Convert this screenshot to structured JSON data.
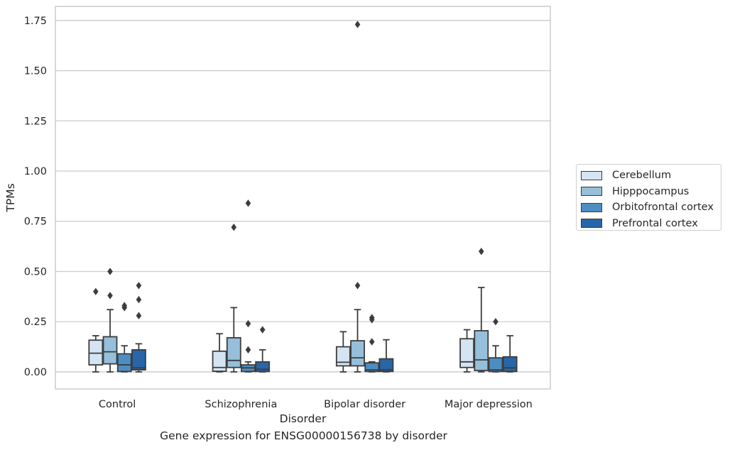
{
  "caption": "Gene expression for ENSG00000156738 by disorder",
  "chart_data": {
    "type": "box",
    "xlabel": "Disorder",
    "ylabel": "TPMs",
    "ylim": [
      -0.085,
      1.82
    ],
    "yticks": [
      0.0,
      0.25,
      0.5,
      0.75,
      1.0,
      1.25,
      1.5,
      1.75
    ],
    "ytick_labels": [
      "0.00",
      "0.25",
      "0.50",
      "0.75",
      "1.00",
      "1.25",
      "1.50",
      "1.75"
    ],
    "grid": "horizontal",
    "legend_position": "right",
    "categories": [
      "Control",
      "Schizophrenia",
      "Bipolar disorder",
      "Major depression"
    ],
    "series": [
      {
        "name": "Cerebellum",
        "color": "#d4e4f2",
        "boxes": [
          {
            "whislo": 0.0,
            "q1": 0.035,
            "med": 0.093,
            "q3": 0.158,
            "whishi": 0.18,
            "fliers": [
              0.4
            ]
          },
          {
            "whislo": 0.0,
            "q1": 0.003,
            "med": 0.022,
            "q3": 0.103,
            "whishi": 0.19,
            "fliers": []
          },
          {
            "whislo": 0.0,
            "q1": 0.03,
            "med": 0.048,
            "q3": 0.125,
            "whishi": 0.2,
            "fliers": []
          },
          {
            "whislo": 0.0,
            "q1": 0.022,
            "med": 0.05,
            "q3": 0.165,
            "whishi": 0.21,
            "fliers": []
          }
        ]
      },
      {
        "name": "Hipppocampus",
        "color": "#95bfda",
        "boxes": [
          {
            "whislo": 0.0,
            "q1": 0.04,
            "med": 0.1,
            "q3": 0.175,
            "whishi": 0.31,
            "fliers": [
              0.38,
              0.5
            ]
          },
          {
            "whislo": 0.0,
            "q1": 0.022,
            "med": 0.057,
            "q3": 0.17,
            "whishi": 0.32,
            "fliers": [
              0.72
            ]
          },
          {
            "whislo": 0.0,
            "q1": 0.03,
            "med": 0.07,
            "q3": 0.155,
            "whishi": 0.31,
            "fliers": [
              0.43,
              1.73
            ]
          },
          {
            "whislo": 0.0,
            "q1": 0.007,
            "med": 0.06,
            "q3": 0.205,
            "whishi": 0.42,
            "fliers": [
              0.6
            ]
          }
        ]
      },
      {
        "name": "Orbitofrontal cortex",
        "color": "#4c8ec3",
        "boxes": [
          {
            "whislo": 0.0,
            "q1": 0.002,
            "med": 0.035,
            "q3": 0.09,
            "whishi": 0.13,
            "fliers": [
              0.32,
              0.33
            ]
          },
          {
            "whislo": 0.0,
            "q1": 0.002,
            "med": 0.02,
            "q3": 0.035,
            "whishi": 0.05,
            "fliers": [
              0.11,
              0.24,
              0.84
            ]
          },
          {
            "whislo": 0.0,
            "q1": 0.002,
            "med": 0.01,
            "q3": 0.045,
            "whishi": 0.05,
            "fliers": [
              0.15,
              0.26,
              0.27
            ]
          },
          {
            "whislo": 0.0,
            "q1": 0.002,
            "med": 0.01,
            "q3": 0.07,
            "whishi": 0.13,
            "fliers": [
              0.25
            ]
          }
        ]
      },
      {
        "name": "Prefrontal cortex",
        "color": "#2866a8",
        "boxes": [
          {
            "whislo": 0.0,
            "q1": 0.01,
            "med": 0.02,
            "q3": 0.11,
            "whishi": 0.14,
            "fliers": [
              0.28,
              0.36,
              0.43
            ]
          },
          {
            "whislo": 0.0,
            "q1": 0.002,
            "med": 0.013,
            "q3": 0.05,
            "whishi": 0.11,
            "fliers": [
              0.21
            ]
          },
          {
            "whislo": 0.0,
            "q1": 0.002,
            "med": 0.01,
            "q3": 0.065,
            "whishi": 0.16,
            "fliers": []
          },
          {
            "whislo": 0.0,
            "q1": 0.002,
            "med": 0.02,
            "q3": 0.075,
            "whishi": 0.18,
            "fliers": []
          }
        ]
      }
    ]
  }
}
